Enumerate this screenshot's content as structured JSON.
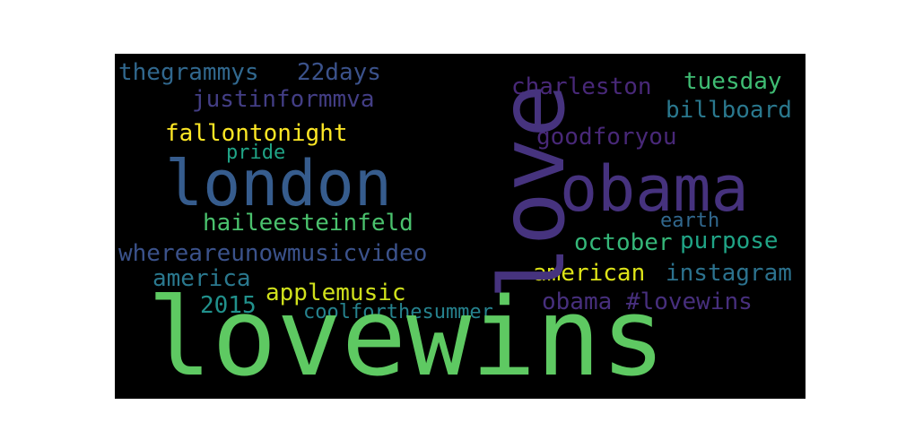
{
  "chart_data": {
    "type": "wordcloud",
    "words": [
      {
        "key": "lovewins",
        "text": "lovewins",
        "color": "#5ec962"
      },
      {
        "key": "love",
        "text": "love",
        "color": "#46337e"
      },
      {
        "key": "london",
        "text": "london",
        "color": "#365c8d"
      },
      {
        "key": "obama_big",
        "text": "obama",
        "color": "#46327e"
      },
      {
        "key": "thegrammys",
        "text": "thegrammys",
        "color": "#31688e"
      },
      {
        "key": "22days",
        "text": "22days",
        "color": "#3b528b"
      },
      {
        "key": "justinformmva",
        "text": "justinformmva",
        "color": "#433e85"
      },
      {
        "key": "fallontonight",
        "text": "fallontonight",
        "color": "#fde725"
      },
      {
        "key": "pride",
        "text": "pride",
        "color": "#20a486"
      },
      {
        "key": "haileesteinfeld",
        "text": "haileesteinfeld",
        "color": "#4ac16d"
      },
      {
        "key": "whereareunowmusicvideo",
        "text": "whereareunowmusicvideo",
        "color": "#3b528b"
      },
      {
        "key": "america",
        "text": "america",
        "color": "#2a788e"
      },
      {
        "key": "2015",
        "text": "2015",
        "color": "#21918c"
      },
      {
        "key": "applemusic",
        "text": "applemusic",
        "color": "#d0e11c"
      },
      {
        "key": "coolforthesummer",
        "text": "coolforthesummer",
        "color": "#26828e"
      },
      {
        "key": "charleston",
        "text": "charleston",
        "color": "#482878"
      },
      {
        "key": "tuesday",
        "text": "tuesday",
        "color": "#3fbc73"
      },
      {
        "key": "billboard",
        "text": "billboard",
        "color": "#2a788e"
      },
      {
        "key": "goodforyou",
        "text": "goodforyou",
        "color": "#482878"
      },
      {
        "key": "earth",
        "text": "earth",
        "color": "#31688e"
      },
      {
        "key": "october",
        "text": "october",
        "color": "#35b779"
      },
      {
        "key": "purpose",
        "text": "purpose",
        "color": "#20a486"
      },
      {
        "key": "american",
        "text": "american",
        "color": "#dde318"
      },
      {
        "key": "instagram",
        "text": "instagram",
        "color": "#2c728e"
      },
      {
        "key": "obamalovewins",
        "text": "obama #lovewins",
        "color": "#472f7d"
      }
    ]
  }
}
